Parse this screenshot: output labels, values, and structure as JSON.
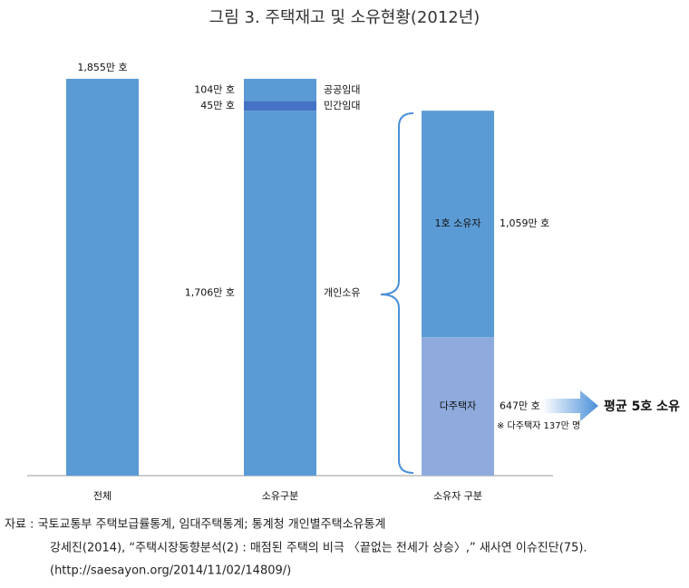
{
  "chart_data": {
    "type": "bar",
    "stacked": true,
    "title": "그림 3. 주택재고 및 소유현황(2012년)",
    "categories": [
      "전체",
      "소유구분",
      "소유자 구분"
    ],
    "series": [
      {
        "color": "#5b9bd5",
        "values": [
          1855,
          null,
          null
        ],
        "value_labels": [
          "1,855만 호",
          null,
          null
        ]
      },
      {
        "name": "개인소유",
        "color": "#5b9bd5",
        "values": [
          null,
          1706,
          null
        ],
        "value_labels": [
          null,
          "1,706만 호",
          null
        ]
      },
      {
        "name": "민간임대",
        "color": "#4472c4",
        "values": [
          null,
          45,
          null
        ],
        "value_labels": [
          null,
          "45만 호",
          null
        ]
      },
      {
        "name": "공공임대",
        "color": "#5b9bd5",
        "values": [
          null,
          104,
          null
        ],
        "value_labels": [
          null,
          "104만 호",
          null
        ]
      },
      {
        "name": "다주택자",
        "color": "#8fabdd",
        "values": [
          null,
          null,
          647
        ],
        "value_labels": [
          null,
          null,
          "647만 호"
        ]
      },
      {
        "name": "1호 소유자",
        "color": "#5b9bd5",
        "values": [
          null,
          null,
          1059
        ],
        "value_labels": [
          null,
          null,
          "1,059만 호"
        ]
      }
    ],
    "annotations": [
      "※ 다주택자 137만 명",
      "평균 5호 소유"
    ],
    "source": [
      "자료 : 국토교통부 주택보급률통계, 임대주택통계; 통계청 개인별주택소유통계",
      "강세진(2014), “주택시장동향분석(2) : 매점된 주택의 비극 〈끝없는 전세가 상승〉,”  새사연 이슈진단(75).",
      "(http://saesayon.org/2014/11/02/14809/)"
    ]
  }
}
